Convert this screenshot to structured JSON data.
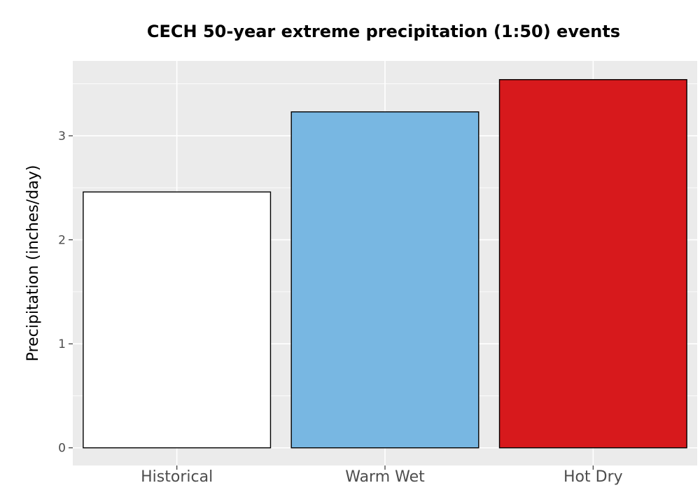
{
  "chart_data": {
    "type": "bar",
    "title": "CECH 50-year extreme precipitation (1:50) events",
    "xlabel": "",
    "ylabel": "Precipitation (inches/day)",
    "categories": [
      "Historical",
      "Warm Wet",
      "Hot Dry"
    ],
    "values": [
      2.46,
      3.23,
      3.54
    ],
    "bar_colors": [
      "#ffffff",
      "#78b7e2",
      "#d7191c"
    ],
    "bar_outline_color": "#000000",
    "panel_background": "#ebebeb",
    "grid": true,
    "grid_color": "#ffffff",
    "ylim": [
      -0.17,
      3.72
    ],
    "yticks": [
      0,
      1,
      2,
      3
    ],
    "ytick_labels": [
      "0",
      "1",
      "2",
      "3"
    ],
    "legend": "none"
  }
}
